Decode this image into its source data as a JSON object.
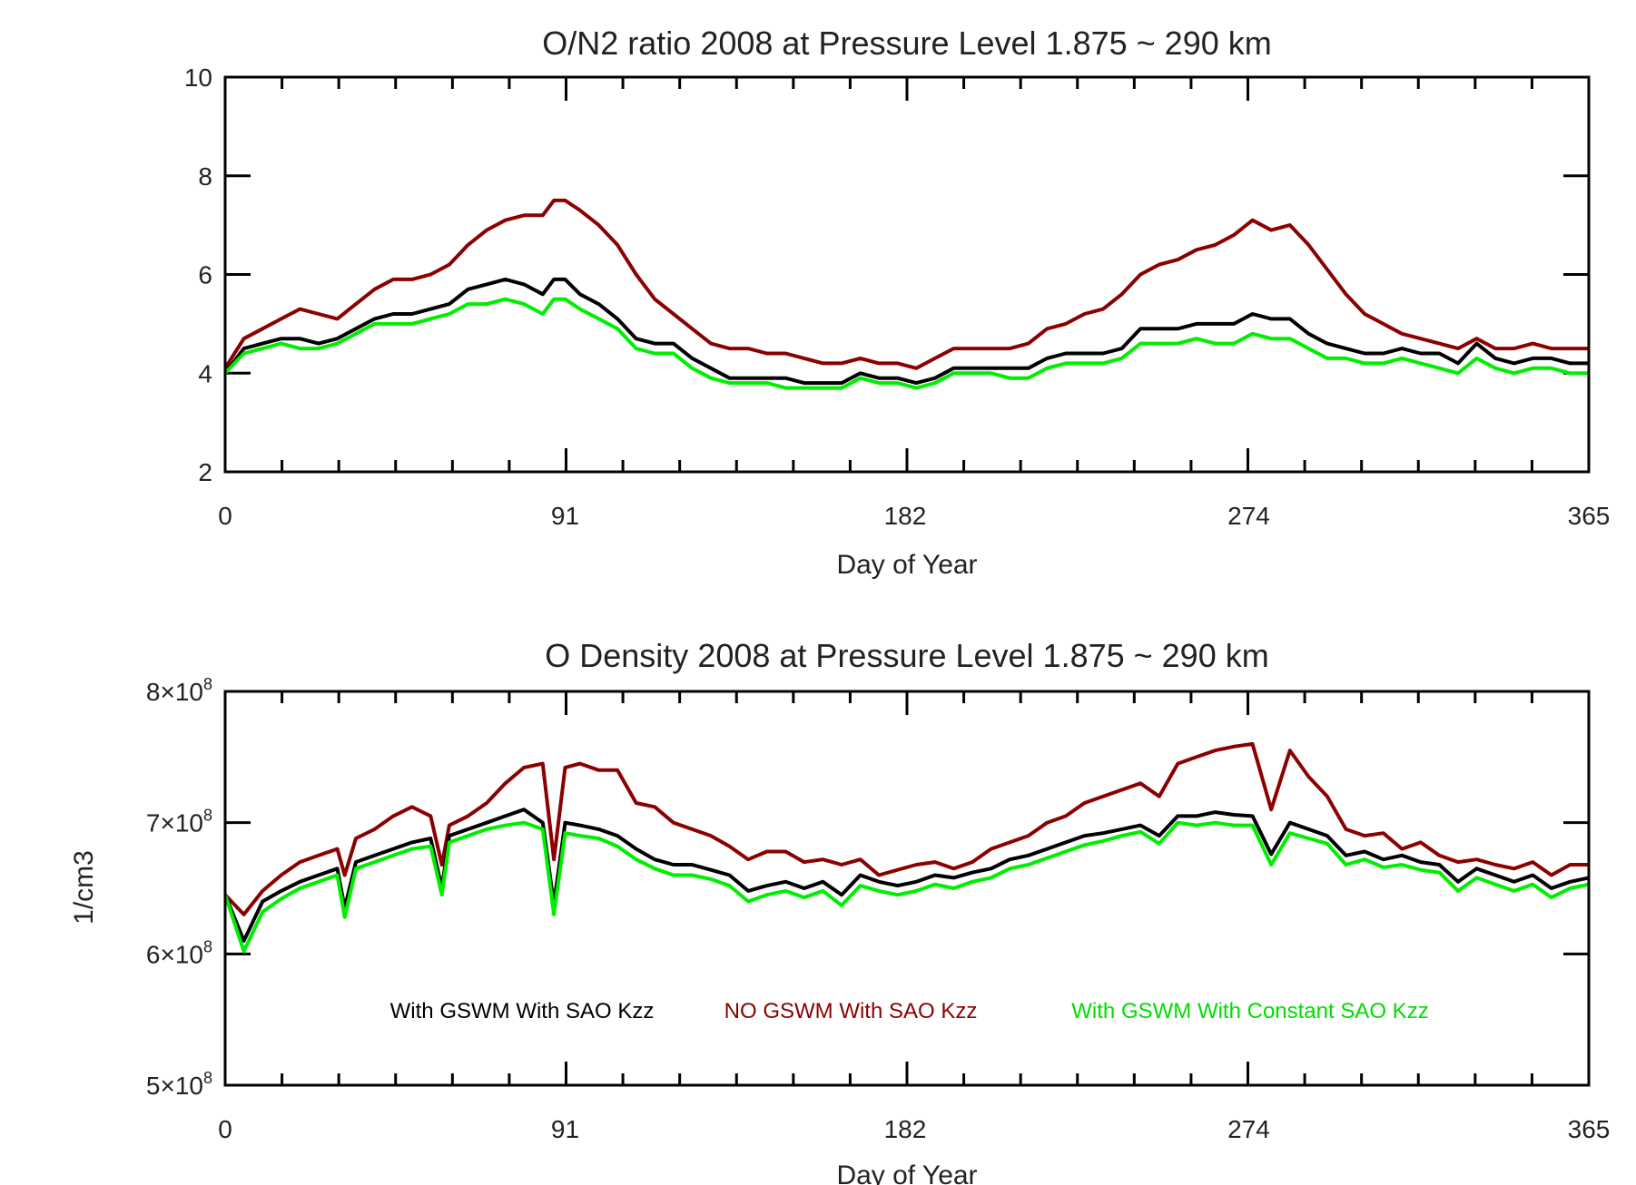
{
  "chart_data": [
    {
      "type": "line",
      "title": "O/N2 ratio 2008 at Pressure Level 1.875 ~ 290 km",
      "xlabel": "Day of Year",
      "ylabel": "",
      "xlim": [
        0,
        365
      ],
      "ylim": [
        2,
        10
      ],
      "xticks": [
        0,
        91,
        182,
        274,
        365
      ],
      "xtick_labels": [
        "0",
        "91",
        "182",
        "274",
        "365"
      ],
      "yticks": [
        2,
        4,
        6,
        8,
        10
      ],
      "ytick_labels": [
        "2",
        "4",
        "6",
        "8",
        "10"
      ],
      "grid": false,
      "series": [
        {
          "name": "NO GSWM With SAO Kzz",
          "color": "#8b0000",
          "x": [
            0,
            5,
            10,
            15,
            20,
            25,
            30,
            35,
            40,
            45,
            50,
            55,
            60,
            65,
            70,
            75,
            80,
            85,
            88,
            91,
            95,
            100,
            105,
            110,
            115,
            120,
            125,
            130,
            135,
            140,
            145,
            150,
            155,
            160,
            165,
            170,
            175,
            180,
            185,
            190,
            195,
            200,
            205,
            210,
            215,
            220,
            225,
            230,
            235,
            240,
            245,
            250,
            255,
            260,
            265,
            270,
            275,
            280,
            285,
            290,
            295,
            300,
            305,
            310,
            315,
            320,
            325,
            330,
            335,
            340,
            345,
            350,
            355,
            360,
            365
          ],
          "y": [
            4.1,
            4.7,
            4.9,
            5.1,
            5.3,
            5.2,
            5.1,
            5.4,
            5.7,
            5.9,
            5.9,
            6.0,
            6.2,
            6.6,
            6.9,
            7.1,
            7.2,
            7.2,
            7.5,
            7.5,
            7.3,
            7.0,
            6.6,
            6.0,
            5.5,
            5.2,
            4.9,
            4.6,
            4.5,
            4.5,
            4.4,
            4.4,
            4.3,
            4.2,
            4.2,
            4.3,
            4.2,
            4.2,
            4.1,
            4.3,
            4.5,
            4.5,
            4.5,
            4.5,
            4.6,
            4.9,
            5.0,
            5.2,
            5.3,
            5.6,
            6.0,
            6.2,
            6.3,
            6.5,
            6.6,
            6.8,
            7.1,
            6.9,
            7.0,
            6.6,
            6.1,
            5.6,
            5.2,
            5.0,
            4.8,
            4.7,
            4.6,
            4.5,
            4.7,
            4.5,
            4.5,
            4.6,
            4.5,
            4.5,
            4.5
          ]
        },
        {
          "name": "With GSWM With SAO Kzz",
          "color": "#000000",
          "x": [
            0,
            5,
            10,
            15,
            20,
            25,
            30,
            35,
            40,
            45,
            50,
            55,
            60,
            65,
            70,
            75,
            80,
            85,
            88,
            91,
            95,
            100,
            105,
            110,
            115,
            120,
            125,
            130,
            135,
            140,
            145,
            150,
            155,
            160,
            165,
            170,
            175,
            180,
            185,
            190,
            195,
            200,
            205,
            210,
            215,
            220,
            225,
            230,
            235,
            240,
            245,
            250,
            255,
            260,
            265,
            270,
            275,
            280,
            285,
            290,
            295,
            300,
            305,
            310,
            315,
            320,
            325,
            330,
            335,
            340,
            345,
            350,
            355,
            360,
            365
          ],
          "y": [
            4.0,
            4.5,
            4.6,
            4.7,
            4.7,
            4.6,
            4.7,
            4.9,
            5.1,
            5.2,
            5.2,
            5.3,
            5.4,
            5.7,
            5.8,
            5.9,
            5.8,
            5.6,
            5.9,
            5.9,
            5.6,
            5.4,
            5.1,
            4.7,
            4.6,
            4.6,
            4.3,
            4.1,
            3.9,
            3.9,
            3.9,
            3.9,
            3.8,
            3.8,
            3.8,
            4.0,
            3.9,
            3.9,
            3.8,
            3.9,
            4.1,
            4.1,
            4.1,
            4.1,
            4.1,
            4.3,
            4.4,
            4.4,
            4.4,
            4.5,
            4.9,
            4.9,
            4.9,
            5.0,
            5.0,
            5.0,
            5.2,
            5.1,
            5.1,
            4.8,
            4.6,
            4.5,
            4.4,
            4.4,
            4.5,
            4.4,
            4.4,
            4.2,
            4.6,
            4.3,
            4.2,
            4.3,
            4.3,
            4.2,
            4.2
          ]
        },
        {
          "name": "With GSWM With Constant SAO Kzz",
          "color": "#00ee00",
          "x": [
            0,
            5,
            10,
            15,
            20,
            25,
            30,
            35,
            40,
            45,
            50,
            55,
            60,
            65,
            70,
            75,
            80,
            85,
            88,
            91,
            95,
            100,
            105,
            110,
            115,
            120,
            125,
            130,
            135,
            140,
            145,
            150,
            155,
            160,
            165,
            170,
            175,
            180,
            185,
            190,
            195,
            200,
            205,
            210,
            215,
            220,
            225,
            230,
            235,
            240,
            245,
            250,
            255,
            260,
            265,
            270,
            275,
            280,
            285,
            290,
            295,
            300,
            305,
            310,
            315,
            320,
            325,
            330,
            335,
            340,
            345,
            350,
            355,
            360,
            365
          ],
          "y": [
            4.0,
            4.4,
            4.5,
            4.6,
            4.5,
            4.5,
            4.6,
            4.8,
            5.0,
            5.0,
            5.0,
            5.1,
            5.2,
            5.4,
            5.4,
            5.5,
            5.4,
            5.2,
            5.5,
            5.5,
            5.3,
            5.1,
            4.9,
            4.5,
            4.4,
            4.4,
            4.1,
            3.9,
            3.8,
            3.8,
            3.8,
            3.7,
            3.7,
            3.7,
            3.7,
            3.9,
            3.8,
            3.8,
            3.7,
            3.8,
            4.0,
            4.0,
            4.0,
            3.9,
            3.9,
            4.1,
            4.2,
            4.2,
            4.2,
            4.3,
            4.6,
            4.6,
            4.6,
            4.7,
            4.6,
            4.6,
            4.8,
            4.7,
            4.7,
            4.5,
            4.3,
            4.3,
            4.2,
            4.2,
            4.3,
            4.2,
            4.1,
            4.0,
            4.3,
            4.1,
            4.0,
            4.1,
            4.1,
            4.0,
            4.0
          ]
        }
      ]
    },
    {
      "type": "line",
      "title": "O Density 2008 at Pressure Level 1.875 ~ 290 km",
      "xlabel": "Day of Year",
      "ylabel": "1/cm3",
      "xlim": [
        0,
        365
      ],
      "ylim": [
        500000000,
        800000000
      ],
      "xticks": [
        0,
        91,
        182,
        274,
        365
      ],
      "xtick_labels": [
        "0",
        "91",
        "182",
        "274",
        "365"
      ],
      "yticks": [
        500000000,
        600000000,
        700000000,
        800000000
      ],
      "ytick_labels": [
        {
          "mantissa": "5×10",
          "exp": "8"
        },
        {
          "mantissa": "6×10",
          "exp": "8"
        },
        {
          "mantissa": "7×10",
          "exp": "8"
        },
        {
          "mantissa": "8×10",
          "exp": "8"
        }
      ],
      "grid": false,
      "legend_placement": "inside-bottom",
      "legend": [
        {
          "label": "With GSWM With SAO Kzz",
          "color": "#000000"
        },
        {
          "label": "NO GSWM With SAO Kzz",
          "color": "#8b0000"
        },
        {
          "label": "With GSWM With Constant SAO Kzz",
          "color": "#00ee00"
        }
      ],
      "series": [
        {
          "name": "NO GSWM With SAO Kzz",
          "color": "#8b0000",
          "x": [
            0,
            5,
            10,
            15,
            20,
            25,
            30,
            32,
            35,
            40,
            45,
            50,
            55,
            58,
            60,
            65,
            70,
            75,
            80,
            85,
            88,
            91,
            95,
            100,
            105,
            110,
            115,
            120,
            125,
            130,
            135,
            140,
            145,
            150,
            155,
            160,
            165,
            170,
            175,
            180,
            185,
            190,
            195,
            200,
            205,
            210,
            215,
            220,
            225,
            230,
            235,
            240,
            245,
            250,
            255,
            260,
            265,
            270,
            275,
            280,
            285,
            290,
            295,
            300,
            305,
            310,
            315,
            320,
            325,
            330,
            335,
            340,
            345,
            350,
            355,
            360,
            365
          ],
          "y": [
            645,
            630,
            648,
            660,
            670,
            675,
            680,
            660,
            688,
            695,
            705,
            712,
            705,
            668,
            698,
            705,
            715,
            730,
            742,
            745,
            672,
            742,
            745,
            740,
            740,
            715,
            712,
            700,
            695,
            690,
            682,
            672,
            678,
            678,
            670,
            672,
            668,
            672,
            660,
            664,
            668,
            670,
            665,
            670,
            680,
            685,
            690,
            700,
            705,
            715,
            720,
            725,
            730,
            720,
            745,
            750,
            755,
            758,
            760,
            710,
            755,
            735,
            720,
            695,
            690,
            692,
            680,
            685,
            675,
            670,
            672,
            668,
            665,
            670,
            660,
            668,
            668
          ]
        },
        {
          "name": "With GSWM With SAO Kzz",
          "color": "#000000",
          "x": [
            0,
            5,
            10,
            15,
            20,
            25,
            30,
            32,
            35,
            40,
            45,
            50,
            55,
            58,
            60,
            65,
            70,
            75,
            80,
            85,
            88,
            91,
            95,
            100,
            105,
            110,
            115,
            120,
            125,
            130,
            135,
            140,
            145,
            150,
            155,
            160,
            165,
            170,
            175,
            180,
            185,
            190,
            195,
            200,
            205,
            210,
            215,
            220,
            225,
            230,
            235,
            240,
            245,
            250,
            255,
            260,
            265,
            270,
            275,
            280,
            285,
            290,
            295,
            300,
            305,
            310,
            315,
            320,
            325,
            330,
            335,
            340,
            345,
            350,
            355,
            360,
            365
          ],
          "y": [
            645,
            610,
            640,
            648,
            655,
            660,
            665,
            635,
            670,
            675,
            680,
            685,
            688,
            650,
            690,
            695,
            700,
            705,
            710,
            700,
            638,
            700,
            698,
            695,
            690,
            680,
            672,
            668,
            668,
            664,
            660,
            648,
            652,
            655,
            650,
            655,
            645,
            660,
            655,
            652,
            655,
            660,
            658,
            662,
            665,
            672,
            675,
            680,
            685,
            690,
            692,
            695,
            698,
            690,
            705,
            705,
            708,
            706,
            705,
            676,
            700,
            695,
            690,
            675,
            678,
            672,
            675,
            670,
            668,
            655,
            665,
            660,
            655,
            660,
            650,
            655,
            658
          ]
        },
        {
          "name": "With GSWM With Constant SAO Kzz",
          "color": "#00ee00",
          "x": [
            0,
            5,
            10,
            15,
            20,
            25,
            30,
            32,
            35,
            40,
            45,
            50,
            55,
            58,
            60,
            65,
            70,
            75,
            80,
            85,
            88,
            91,
            95,
            100,
            105,
            110,
            115,
            120,
            125,
            130,
            135,
            140,
            145,
            150,
            155,
            160,
            165,
            170,
            175,
            180,
            185,
            190,
            195,
            200,
            205,
            210,
            215,
            220,
            225,
            230,
            235,
            240,
            245,
            250,
            255,
            260,
            265,
            270,
            275,
            280,
            285,
            290,
            295,
            300,
            305,
            310,
            315,
            320,
            325,
            330,
            335,
            340,
            345,
            350,
            355,
            360,
            365
          ],
          "y": [
            645,
            602,
            632,
            642,
            650,
            655,
            660,
            628,
            665,
            670,
            675,
            680,
            682,
            645,
            685,
            690,
            695,
            698,
            700,
            695,
            630,
            692,
            690,
            688,
            682,
            672,
            665,
            660,
            660,
            657,
            652,
            640,
            645,
            648,
            643,
            648,
            637,
            652,
            648,
            645,
            648,
            653,
            650,
            655,
            658,
            665,
            668,
            673,
            678,
            683,
            686,
            690,
            693,
            684,
            700,
            698,
            700,
            698,
            698,
            668,
            692,
            688,
            684,
            668,
            672,
            666,
            668,
            664,
            662,
            648,
            658,
            653,
            648,
            653,
            643,
            650,
            653
          ]
        }
      ]
    }
  ]
}
